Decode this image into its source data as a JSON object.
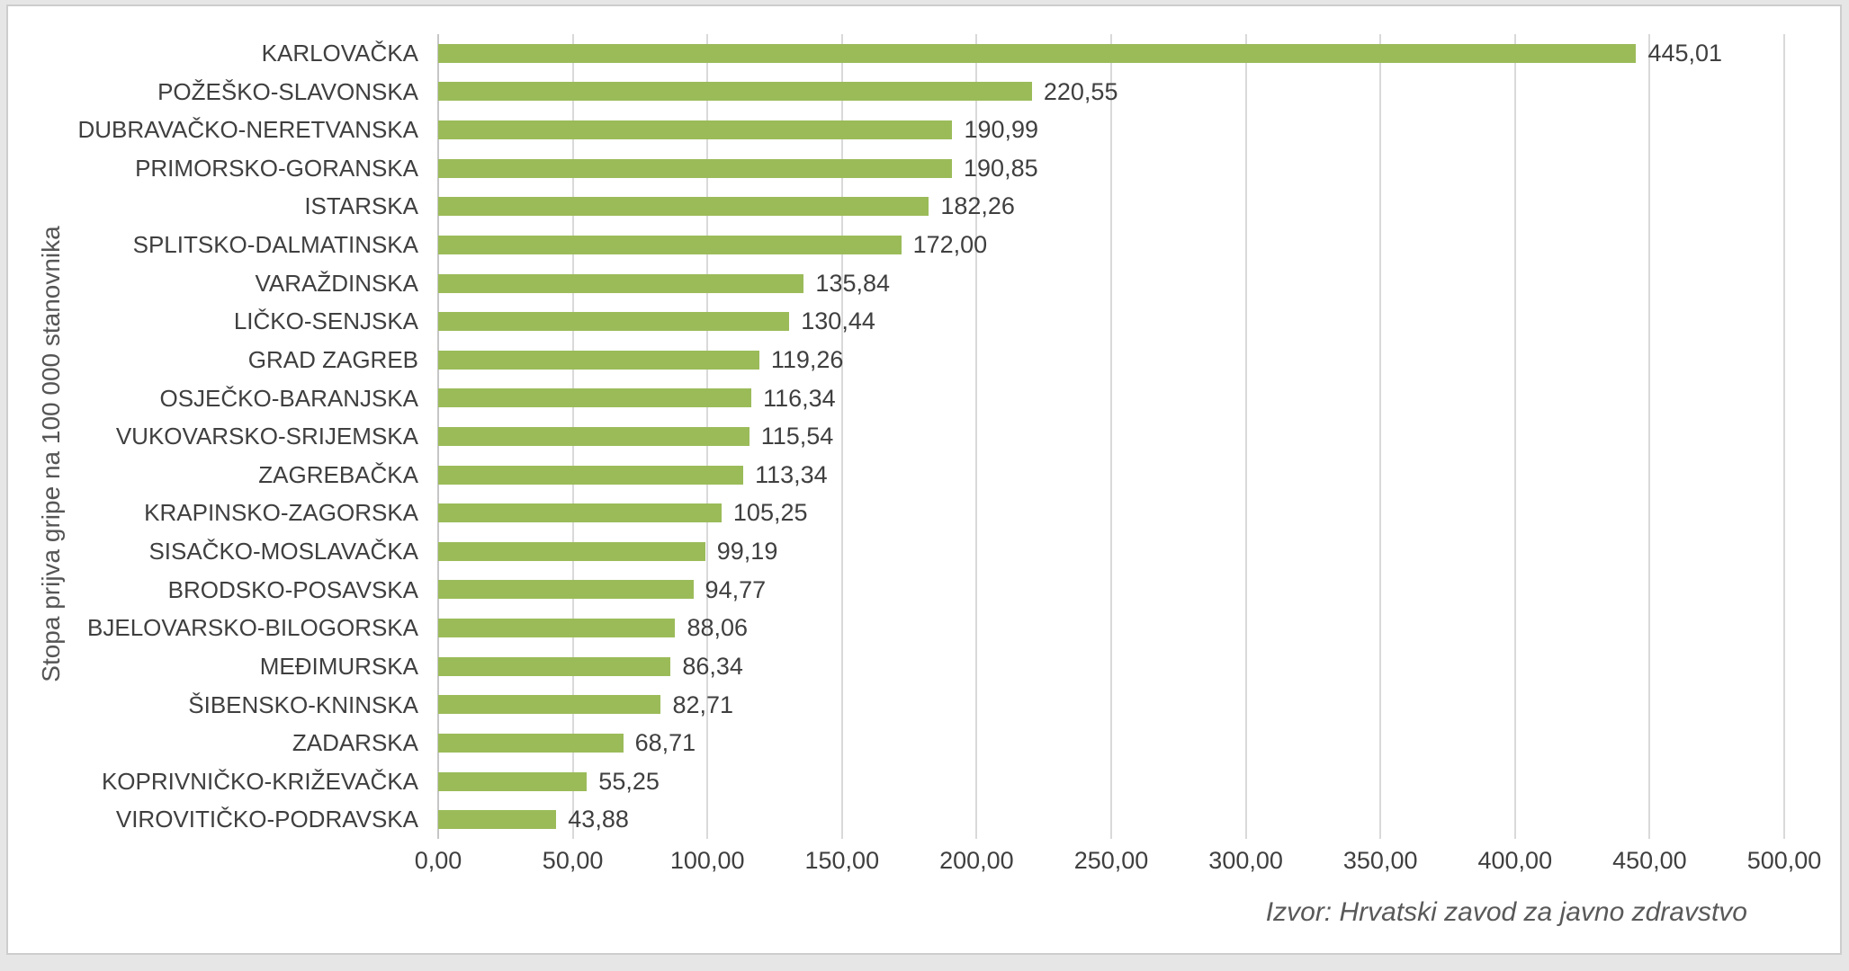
{
  "chart_data": {
    "type": "bar",
    "orientation": "horizontal",
    "title": "",
    "ylabel": "Stopa prijva gripe na 100 000 stanovnika",
    "xlabel": "",
    "xlim": [
      0,
      500
    ],
    "grid": "vertical",
    "legend": "none",
    "source_note": "Izvor: Hrvatski zavod za javno zdravstvo",
    "bar_color": "#9BBB59",
    "gridline_color": "#D9D9D9",
    "axis_line_color": "#C6C6C6",
    "label_color": "#3F3F3F",
    "muted_text_color": "#595959",
    "categories": [
      "KARLOVAČKA",
      "POŽEŠKO-SLAVONSKA",
      "DUBRAVAČKO-NERETVANSKA",
      "PRIMORSKO-GORANSKA",
      "ISTARSKA",
      "SPLITSKO-DALMATINSKA",
      "VARAŽDINSKA",
      "LIČKO-SENJSKA",
      "GRAD ZAGREB",
      "OSJEČKO-BARANJSKA",
      "VUKOVARSKO-SRIJEMSKA",
      "ZAGREBAČKA",
      "KRAPINSKO-ZAGORSKA",
      "SISAČKO-MOSLAVAČKA",
      "BRODSKO-POSAVSKA",
      "BJELOVARSKO-BILOGORSKA",
      "MEĐIMURSKA",
      "ŠIBENSKO-KNINSKA",
      "ZADARSKA",
      "KOPRIVNIČKO-KRIŽEVAČKA",
      "VIROVITIČKO-PODRAVSKA"
    ],
    "values": [
      445.01,
      220.55,
      190.99,
      190.85,
      182.26,
      172.0,
      135.84,
      130.44,
      119.26,
      116.34,
      115.54,
      113.34,
      105.25,
      99.19,
      94.77,
      88.06,
      86.34,
      82.71,
      68.71,
      55.25,
      43.88
    ],
    "value_labels": [
      "445,01",
      "220,55",
      "190,99",
      "190,85",
      "182,26",
      "172,00",
      "135,84",
      "130,44",
      "119,26",
      "116,34",
      "115,54",
      "113,34",
      "105,25",
      "99,19",
      "94,77",
      "88,06",
      "86,34",
      "82,71",
      "68,71",
      "55,25",
      "43,88"
    ],
    "x_ticks": [
      {
        "label": "0,00",
        "value": 0
      },
      {
        "label": "50,00",
        "value": 50
      },
      {
        "label": "100,00",
        "value": 100
      },
      {
        "label": "150,00",
        "value": 150
      },
      {
        "label": "200,00",
        "value": 200
      },
      {
        "label": "250,00",
        "value": 250
      },
      {
        "label": "300,00",
        "value": 300
      },
      {
        "label": "350,00",
        "value": 350
      },
      {
        "label": "400,00",
        "value": 400
      },
      {
        "label": "450,00",
        "value": 450
      },
      {
        "label": "500,00",
        "value": 500
      }
    ]
  }
}
